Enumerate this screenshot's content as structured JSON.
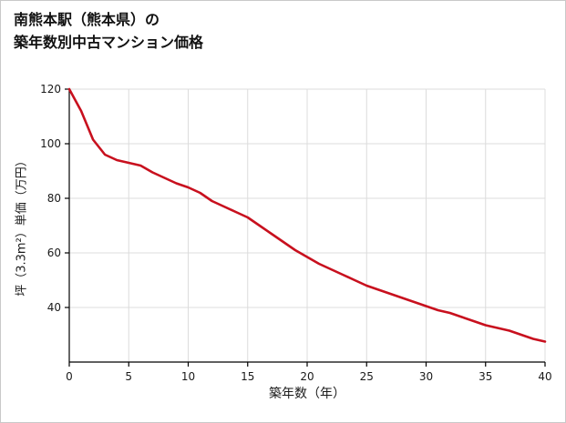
{
  "title": {
    "line1": "南熊本駅（熊本県）の",
    "line2": "築年数別中古マンション価格"
  },
  "colors": {
    "line": "#c8101e",
    "grid": "#dcdcdc",
    "axis": "#000000",
    "tick_text": "#1a1a1a",
    "border": "#c9c9c9"
  },
  "chart_data": {
    "type": "line",
    "title": "南熊本駅（熊本県）の築年数別中古マンション価格",
    "xlabel": "築年数（年）",
    "ylabel": "坪（3.3m²）単価（万円）",
    "x": [
      0,
      1,
      2,
      3,
      4,
      5,
      6,
      7,
      8,
      9,
      10,
      11,
      12,
      13,
      14,
      15,
      16,
      17,
      18,
      19,
      20,
      21,
      22,
      23,
      24,
      25,
      26,
      27,
      28,
      29,
      30,
      31,
      32,
      33,
      34,
      35,
      36,
      37,
      38,
      39,
      40
    ],
    "values": [
      120,
      112,
      101.5,
      96,
      94,
      93,
      92,
      89.5,
      87.5,
      85.5,
      84,
      82,
      79,
      77,
      75,
      73,
      70,
      67,
      64,
      61,
      58.5,
      56,
      54,
      52,
      50,
      48,
      46.5,
      45,
      43.5,
      42,
      40.5,
      39,
      38,
      36.5,
      35,
      33.5,
      32.5,
      31.5,
      30,
      28.5,
      27.5
    ],
    "xlim": [
      0,
      40
    ],
    "ylim": [
      20,
      120
    ],
    "x_ticks": [
      0,
      5,
      10,
      15,
      20,
      25,
      30,
      35,
      40
    ],
    "y_ticks": [
      40,
      60,
      80,
      100,
      120
    ],
    "grid": true,
    "legend": "none"
  }
}
